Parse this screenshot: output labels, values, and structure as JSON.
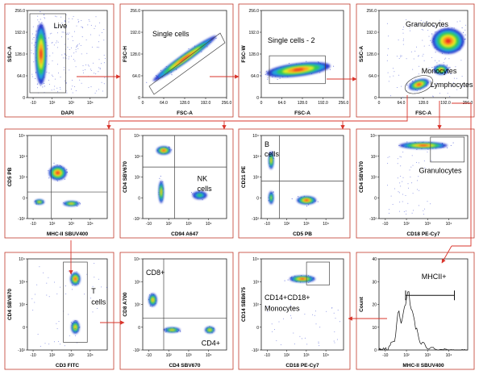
{
  "colors": {
    "arrow": "#d9342b",
    "panel_border": "#c0392b",
    "gate": "#444444",
    "density": [
      "#2233cc",
      "#22aadd",
      "#33cc55",
      "#eeee22",
      "#ff9922",
      "#ee2222"
    ]
  },
  "ticks": {
    "lin": [
      "0",
      "64.0",
      "128.0",
      "192.0",
      "256.0"
    ],
    "lin_x": [
      "64.0",
      "128.0",
      "192.0",
      "256.0"
    ],
    "log_y": [
      "10⁴",
      "10³",
      "10²",
      "0",
      "-10²"
    ],
    "log_x": [
      "-10",
      "10²",
      "10³",
      "10⁴"
    ]
  },
  "panels": [
    {
      "id": "p1",
      "xlabel": "DAPI",
      "ylabel": "SSC-A",
      "ytype": "lin",
      "xtype": "log",
      "gates": [
        {
          "label": "Live"
        }
      ]
    },
    {
      "id": "p2",
      "xlabel": "FSC-A",
      "ylabel": "FSC-H",
      "ytype": "lin",
      "xtype": "lin",
      "gates": [
        {
          "label": "Single cells"
        }
      ]
    },
    {
      "id": "p3",
      "xlabel": "FSC-A",
      "ylabel": "FSC-W",
      "ytype": "lin",
      "xtype": "lin",
      "gates": [
        {
          "label": "Single cells - 2"
        }
      ]
    },
    {
      "id": "p4",
      "xlabel": "FSC-A",
      "ylabel": "SSC-A",
      "ytype": "lin",
      "xtype": "lin",
      "gates": [
        {
          "label": "Granulocytes"
        },
        {
          "label": "Monocytes"
        },
        {
          "label": "Lymphocytes"
        }
      ]
    },
    {
      "id": "p5",
      "xlabel": "MHC-II SBUV400",
      "ylabel": "CD5 PB",
      "ytype": "log",
      "xtype": "log",
      "gates": []
    },
    {
      "id": "p6",
      "xlabel": "CD94 A647",
      "ylabel": "CD4 SBV670",
      "ytype": "log",
      "xtype": "log",
      "gates": [
        {
          "label": "NK"
        },
        {
          "label": "cells"
        }
      ]
    },
    {
      "id": "p7",
      "xlabel": "CD5 PB",
      "ylabel": "CD21 PE",
      "ytype": "log",
      "xtype": "log",
      "gates": [
        {
          "label": "B"
        },
        {
          "label": "cells"
        }
      ]
    },
    {
      "id": "p8",
      "xlabel": "CD18 PE-Cy7",
      "ylabel": "CD4 SBV670",
      "ytype": "log",
      "xtype": "log",
      "gates": [
        {
          "label": "Granulocytes"
        }
      ]
    },
    {
      "id": "p9",
      "xlabel": "CD3 FITC",
      "ylabel": "CD4 SBV670",
      "ytype": "log",
      "xtype": "log",
      "gates": [
        {
          "label": "T"
        },
        {
          "label": "cells"
        }
      ]
    },
    {
      "id": "p10",
      "xlabel": "CD4 SBV670",
      "ylabel": "CD8 A700",
      "ytype": "log",
      "xtype": "log",
      "gates": [
        {
          "label": "CD8+"
        },
        {
          "label": "CD4+"
        }
      ]
    },
    {
      "id": "p11",
      "xlabel": "CD18 PE-Cy7",
      "ylabel": "CD14 SBB675",
      "ytype": "log",
      "xtype": "log",
      "gates": [
        {
          "label": "CD14+CD18+"
        },
        {
          "label": "Monocytes"
        }
      ]
    },
    {
      "id": "p12",
      "xlabel": "MHC-II SBUV400",
      "ylabel": "Count",
      "ytype": "hist",
      "xtype": "log",
      "gates": [
        {
          "label": "MHCII+"
        }
      ],
      "hist_ticks": [
        "0",
        "10",
        "20",
        "30",
        "40"
      ]
    }
  ]
}
